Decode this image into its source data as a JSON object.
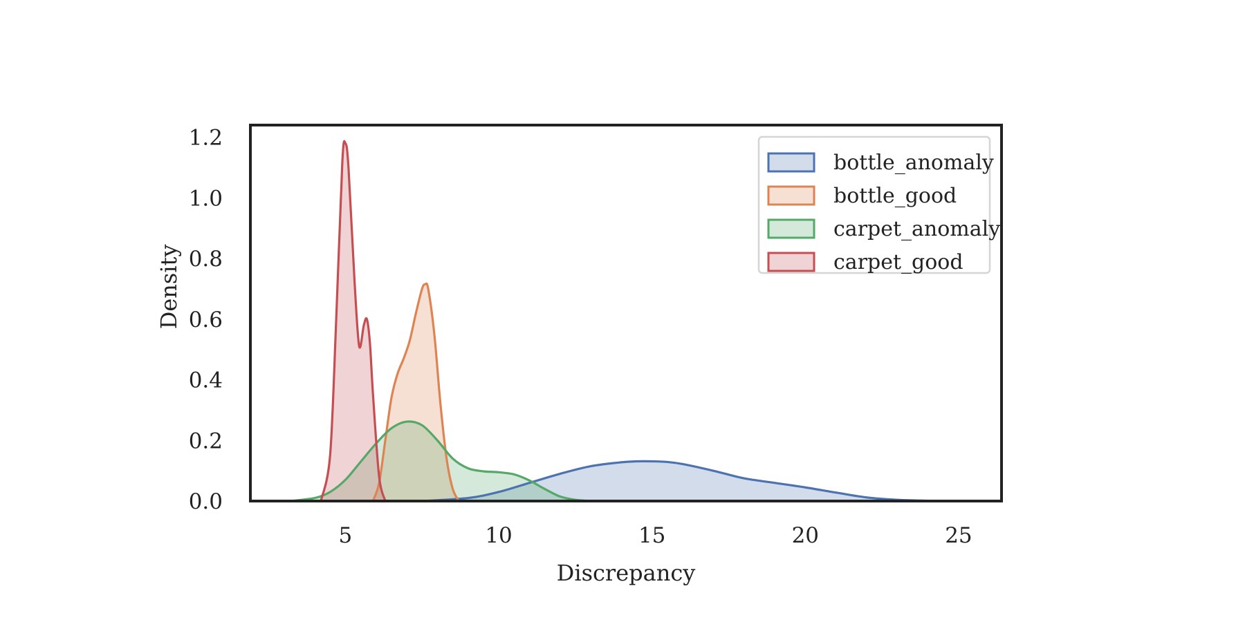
{
  "chart_data": {
    "type": "area",
    "xlabel": "Discrepancy",
    "ylabel": "Density",
    "xlim": [
      1.9,
      26.4
    ],
    "ylim": [
      0.0,
      1.24
    ],
    "x_ticks": [
      5,
      10,
      15,
      20,
      25
    ],
    "x_tick_labels": [
      "5",
      "10",
      "15",
      "20",
      "25"
    ],
    "y_ticks": [
      0.0,
      0.2,
      0.4,
      0.6,
      0.8,
      1.0,
      1.2
    ],
    "y_tick_labels": [
      "0.0",
      "0.2",
      "0.4",
      "0.6",
      "0.8",
      "1.0",
      "1.2"
    ],
    "grid": false,
    "legend_position": "top-right",
    "series": [
      {
        "name": "bottle_anomaly",
        "color": "#4c72b0",
        "x": [
          7.5,
          9,
          10,
          11,
          12,
          13,
          14,
          14.5,
          15,
          15.5,
          16,
          17,
          18,
          19,
          20,
          21,
          22,
          23,
          24,
          25
        ],
        "y": [
          0.0,
          0.01,
          0.03,
          0.06,
          0.09,
          0.115,
          0.128,
          0.131,
          0.131,
          0.129,
          0.122,
          0.1,
          0.075,
          0.06,
          0.045,
          0.028,
          0.012,
          0.004,
          0.001,
          0.0
        ]
      },
      {
        "name": "bottle_good",
        "color": "#dd8452",
        "x": [
          5.9,
          6.1,
          6.3,
          6.5,
          6.7,
          6.9,
          7.1,
          7.3,
          7.5,
          7.6,
          7.7,
          7.9,
          8.1,
          8.3,
          8.5,
          8.7
        ],
        "y": [
          0.0,
          0.06,
          0.2,
          0.34,
          0.42,
          0.47,
          0.53,
          0.62,
          0.7,
          0.715,
          0.7,
          0.55,
          0.32,
          0.14,
          0.04,
          0.0
        ]
      },
      {
        "name": "carpet_anomaly",
        "color": "#55a868",
        "x": [
          3.2,
          4,
          4.5,
          5,
          5.5,
          6,
          6.5,
          7,
          7.5,
          8,
          8.5,
          9,
          9.5,
          10,
          10.5,
          11,
          11.5,
          12,
          12.5,
          13
        ],
        "y": [
          0.0,
          0.01,
          0.03,
          0.07,
          0.13,
          0.19,
          0.24,
          0.262,
          0.25,
          0.2,
          0.14,
          0.108,
          0.098,
          0.095,
          0.088,
          0.068,
          0.04,
          0.015,
          0.004,
          0.0
        ]
      },
      {
        "name": "carpet_good",
        "color": "#c44e52",
        "x": [
          4.2,
          4.5,
          4.7,
          4.9,
          5.0,
          5.1,
          5.3,
          5.45,
          5.6,
          5.7,
          5.8,
          5.9,
          6.1,
          6.3
        ],
        "y": [
          0.0,
          0.15,
          0.6,
          1.12,
          1.18,
          1.1,
          0.72,
          0.51,
          0.58,
          0.6,
          0.52,
          0.35,
          0.08,
          0.0
        ]
      }
    ]
  }
}
